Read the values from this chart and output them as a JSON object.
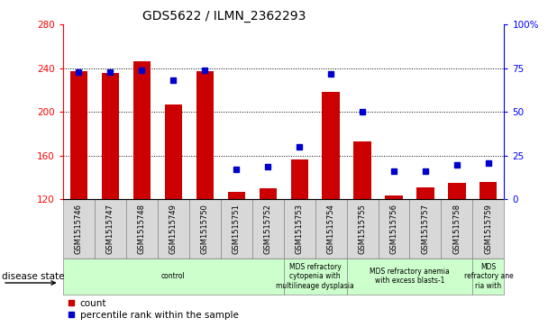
{
  "title": "GDS5622 / ILMN_2362293",
  "samples": [
    "GSM1515746",
    "GSM1515747",
    "GSM1515748",
    "GSM1515749",
    "GSM1515750",
    "GSM1515751",
    "GSM1515752",
    "GSM1515753",
    "GSM1515754",
    "GSM1515755",
    "GSM1515756",
    "GSM1515757",
    "GSM1515758",
    "GSM1515759"
  ],
  "counts": [
    237,
    236,
    246,
    207,
    237,
    127,
    130,
    157,
    218,
    173,
    124,
    131,
    135,
    136
  ],
  "percentiles": [
    73,
    73,
    74,
    68,
    74,
    17,
    19,
    30,
    72,
    50,
    16,
    16,
    20,
    21
  ],
  "ymin": 120,
  "ymax": 280,
  "yright_min": 0,
  "yright_max": 100,
  "yticks_left": [
    120,
    160,
    200,
    240,
    280
  ],
  "yticks_right": [
    0,
    25,
    50,
    75,
    100
  ],
  "bar_color": "#cc0000",
  "dot_color": "#0000cc",
  "disease_groups": [
    {
      "label": "control",
      "start": 0,
      "end": 7
    },
    {
      "label": "MDS refractory\ncytopenia with\nmultilineage dysplasia",
      "start": 7,
      "end": 9
    },
    {
      "label": "MDS refractory anemia\nwith excess blasts-1",
      "start": 9,
      "end": 13
    },
    {
      "label": "MDS\nrefractory ane\nria with",
      "start": 13,
      "end": 14
    }
  ],
  "disease_bg_color": "#ccffcc",
  "sample_bg_color": "#d8d8d8",
  "xlabel_disease": "disease state",
  "legend_count": "count",
  "legend_pct": "percentile rank within the sample"
}
